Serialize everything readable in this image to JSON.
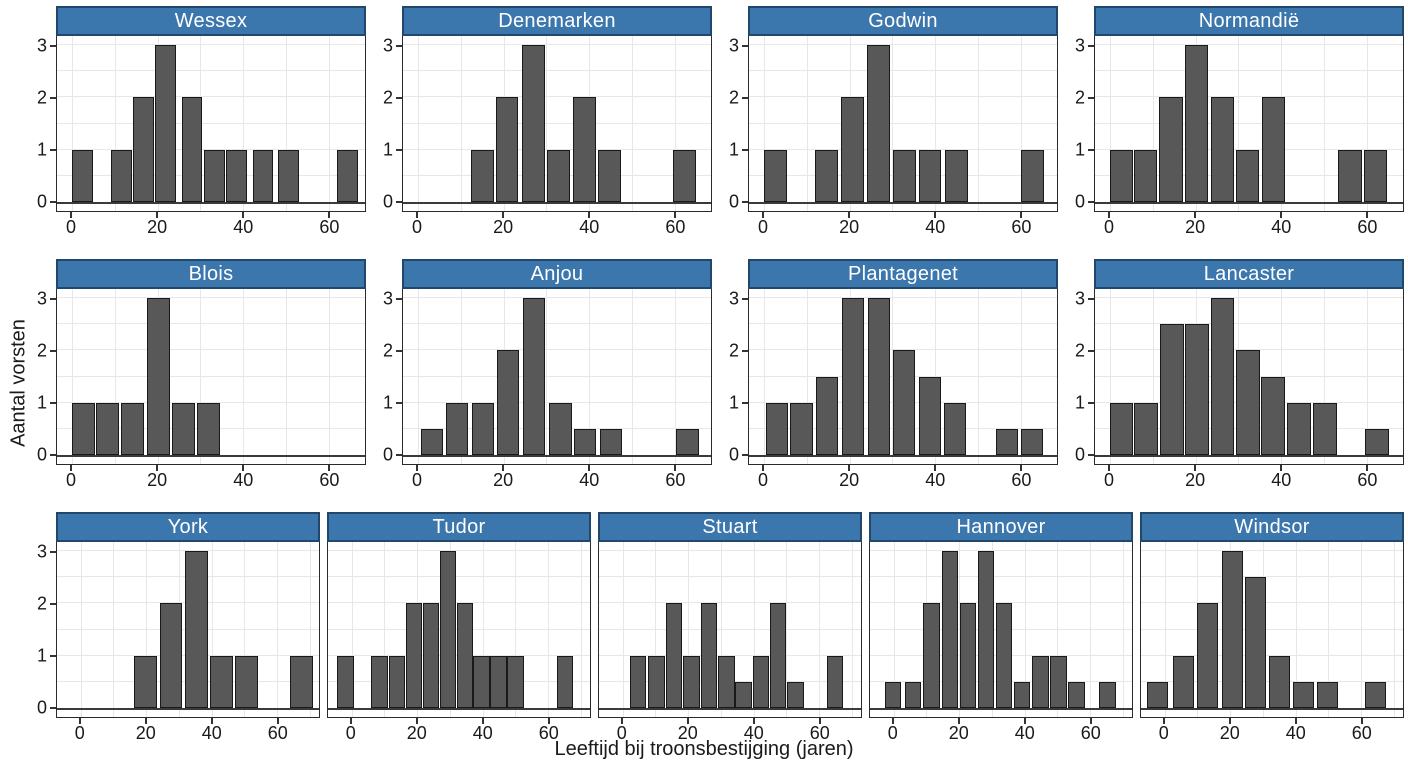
{
  "chart_data": {
    "type": "bar",
    "subtype": "faceted-histograms",
    "title": "",
    "xlabel": "Leeftijd bij troonsbestijging (jaren)",
    "ylabel": "Aantal vorsten",
    "x_ticks": [
      0,
      20,
      40,
      60
    ],
    "y_ticks": [
      0,
      1,
      2,
      3
    ],
    "y_range": [
      -0.17,
      3.17
    ],
    "grid": true,
    "legend": "none",
    "rows": [
      {
        "x_range": [
          -3.5,
          68.5
        ]
      },
      {
        "x_range": [
          -3.5,
          68.5
        ]
      },
      {
        "x_range": [
          -7.2,
          72.8
        ]
      }
    ],
    "colors": {
      "bar_fill": "#585858",
      "bar_border": "#191919",
      "strip_fill": "#3b76ac",
      "strip_border": "#21486c",
      "strip_text": "#ffffff",
      "grid": "#e7e7e7",
      "panel_border": "#2b2b2b",
      "text": "#1a1a1a"
    },
    "facets": [
      {
        "label": "Wessex",
        "row": 0,
        "y_labels": true,
        "binwidth": 4.8,
        "bars": [
          [
            0,
            1
          ],
          [
            9.2,
            1
          ],
          [
            14.3,
            2
          ],
          [
            19.5,
            3
          ],
          [
            25.7,
            2
          ],
          [
            30.9,
            1
          ],
          [
            36.1,
            1
          ],
          [
            42.3,
            1
          ],
          [
            48.2,
            1
          ],
          [
            62,
            1
          ]
        ]
      },
      {
        "label": "Denemarken",
        "row": 0,
        "y_labels": true,
        "binwidth": 5.3,
        "bars": [
          [
            12.4,
            1
          ],
          [
            18.2,
            2
          ],
          [
            24.4,
            3
          ],
          [
            30.2,
            1
          ],
          [
            36.3,
            2
          ],
          [
            42.2,
            1
          ],
          [
            59.7,
            1
          ]
        ]
      },
      {
        "label": "Godwin",
        "row": 0,
        "y_labels": true,
        "binwidth": 5.3,
        "bars": [
          [
            0,
            1
          ],
          [
            12,
            1
          ],
          [
            18.1,
            2
          ],
          [
            24.2,
            3
          ],
          [
            30.2,
            1
          ],
          [
            36.2,
            1
          ],
          [
            42.4,
            1
          ],
          [
            60.2,
            1
          ]
        ]
      },
      {
        "label": "Normandië",
        "row": 0,
        "y_labels": true,
        "binwidth": 5.5,
        "bars": [
          [
            0,
            1
          ],
          [
            5.6,
            1
          ],
          [
            11.5,
            2
          ],
          [
            17.5,
            3
          ],
          [
            23.5,
            2
          ],
          [
            29.4,
            1
          ],
          [
            35.5,
            2
          ],
          [
            53.4,
            1
          ],
          [
            59.3,
            1
          ]
        ]
      },
      {
        "label": "Blois",
        "row": 1,
        "y_labels": true,
        "binwidth": 5.4,
        "bars": [
          [
            0,
            1
          ],
          [
            5.6,
            1
          ],
          [
            11.5,
            1
          ],
          [
            17.5,
            3
          ],
          [
            23.4,
            1
          ],
          [
            29.3,
            1
          ]
        ]
      },
      {
        "label": "Anjou",
        "row": 1,
        "y_labels": true,
        "binwidth": 5.2,
        "bars": [
          [
            0.6,
            0.5
          ],
          [
            6.6,
            1
          ],
          [
            12.6,
            1
          ],
          [
            18.5,
            2
          ],
          [
            24.6,
            3
          ],
          [
            30.7,
            1
          ],
          [
            36.4,
            0.5
          ],
          [
            42.5,
            0.5
          ],
          [
            60.4,
            0.5
          ]
        ]
      },
      {
        "label": "Plantagenet",
        "row": 1,
        "y_labels": true,
        "binwidth": 5.2,
        "bars": [
          [
            0.4,
            1
          ],
          [
            6.2,
            1
          ],
          [
            12.2,
            1.5
          ],
          [
            18.2,
            3
          ],
          [
            24.3,
            3
          ],
          [
            30.2,
            2
          ],
          [
            36.3,
            1.5
          ],
          [
            42.1,
            1
          ],
          [
            54.3,
            0.5
          ],
          [
            60.1,
            0.5
          ]
        ]
      },
      {
        "label": "Lancaster",
        "row": 1,
        "y_labels": true,
        "binwidth": 5.5,
        "bars": [
          [
            0,
            1
          ],
          [
            5.7,
            1
          ],
          [
            11.7,
            2.5
          ],
          [
            17.6,
            2.5
          ],
          [
            23.6,
            3
          ],
          [
            29.5,
            2
          ],
          [
            35.4,
            1.5
          ],
          [
            41.4,
            1
          ],
          [
            47.5,
            1
          ],
          [
            59.7,
            0.5
          ]
        ]
      },
      {
        "label": "York",
        "row": 2,
        "y_labels": true,
        "binwidth": 7,
        "bars": [
          [
            16.4,
            1
          ],
          [
            24.1,
            2
          ],
          [
            31.8,
            3
          ],
          [
            39.5,
            1
          ],
          [
            47.2,
            1
          ],
          [
            63.9,
            1
          ]
        ]
      },
      {
        "label": "Tudor",
        "row": 2,
        "y_labels": false,
        "binwidth": 5,
        "bars": [
          [
            -4.3,
            1
          ],
          [
            6,
            1
          ],
          [
            11.3,
            1
          ],
          [
            16.5,
            2
          ],
          [
            21.7,
            2
          ],
          [
            26.9,
            3
          ],
          [
            32.1,
            2
          ],
          [
            37.2,
            1
          ],
          [
            42.4,
            1
          ],
          [
            47.6,
            1
          ],
          [
            62.7,
            1
          ]
        ]
      },
      {
        "label": "Stuart",
        "row": 2,
        "y_labels": false,
        "binwidth": 5,
        "bars": [
          [
            2.3,
            1
          ],
          [
            7.9,
            1
          ],
          [
            13.2,
            2
          ],
          [
            18.5,
            1
          ],
          [
            23.8,
            2
          ],
          [
            29.2,
            1
          ],
          [
            34.4,
            0.5
          ],
          [
            39.8,
            1
          ],
          [
            45,
            2
          ],
          [
            50.3,
            0.5
          ],
          [
            62.4,
            1
          ]
        ]
      },
      {
        "label": "Hannover",
        "row": 2,
        "y_labels": false,
        "binwidth": 5,
        "bars": [
          [
            -2.6,
            0.5
          ],
          [
            3.4,
            0.5
          ],
          [
            9.1,
            2
          ],
          [
            14.7,
            3
          ],
          [
            20.3,
            2
          ],
          [
            25.8,
            3
          ],
          [
            31.3,
            2
          ],
          [
            36.8,
            0.5
          ],
          [
            42.4,
            1
          ],
          [
            47.9,
            1
          ],
          [
            53.4,
            0.5
          ],
          [
            62.8,
            0.5
          ]
        ]
      },
      {
        "label": "Windsor",
        "row": 2,
        "y_labels": false,
        "binwidth": 6.4,
        "bars": [
          [
            -5.5,
            0.5
          ],
          [
            2.6,
            1
          ],
          [
            10,
            2
          ],
          [
            17.4,
            3
          ],
          [
            24.7,
            2.5
          ],
          [
            32,
            1
          ],
          [
            39.2,
            0.5
          ],
          [
            46.6,
            0.5
          ],
          [
            61.3,
            0.5
          ]
        ]
      }
    ]
  }
}
